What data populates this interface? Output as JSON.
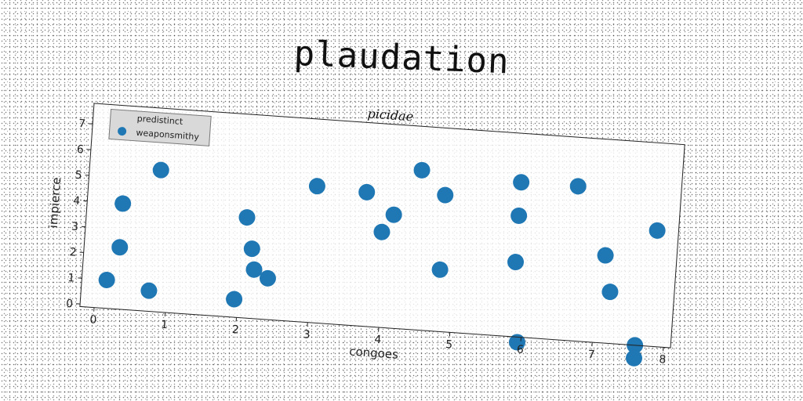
{
  "title": "plaudation",
  "chart_data": {
    "type": "scatter",
    "subtitle": "picidae",
    "xlabel": "congoes",
    "ylabel": "impierce",
    "xlim": [
      -0.2,
      8.1
    ],
    "ylim": [
      -0.1,
      7.8
    ],
    "xticks": [
      "0",
      "1",
      "2",
      "3",
      "4",
      "5",
      "6",
      "7",
      "8"
    ],
    "yticks": [
      "0",
      "1",
      "2",
      "3",
      "4",
      "5",
      "6",
      "7"
    ],
    "legend": {
      "position": "top-left",
      "entries": [
        {
          "label": "predistinct",
          "marker": "none"
        },
        {
          "label": "weaponsmithy",
          "marker": "circle"
        }
      ]
    },
    "series": [
      {
        "name": "weaponsmithy",
        "color": "#1f77b4",
        "x": [
          0.15,
          0.3,
          0.3,
          0.75,
          0.8,
          1.95,
          2.05,
          2.15,
          2.2,
          2.4,
          3.0,
          3.7,
          3.95,
          4.1,
          4.45,
          4.8,
          4.8,
          5.85,
          5.85,
          5.85,
          5.95,
          6.65,
          7.1,
          7.2,
          7.6,
          7.6,
          7.8
        ],
        "y": [
          1.0,
          4.0,
          2.3,
          0.7,
          5.4,
          0.6,
          3.8,
          2.6,
          1.8,
          1.5,
          5.2,
          5.1,
          3.6,
          4.3,
          6.1,
          5.2,
          2.3,
          5.9,
          4.6,
          2.8,
          -0.3,
          5.9,
          3.3,
          1.9,
          -0.1,
          -0.6,
          4.4
        ]
      }
    ]
  }
}
